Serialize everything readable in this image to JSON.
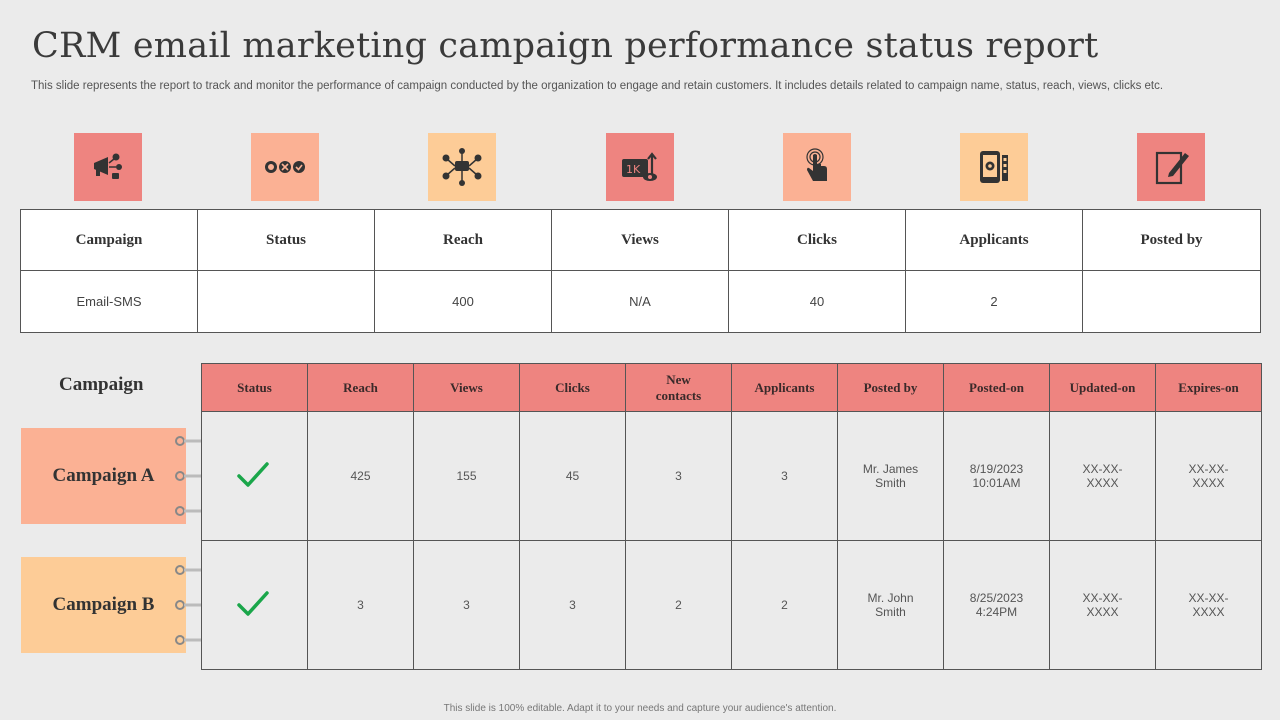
{
  "title": "CRM email marketing campaign performance status report",
  "subtitle": "This slide represents the report to track and monitor the performance of campaign conducted by the organization to engage and retain customers. It includes details related to campaign name, status, reach, views, clicks etc.",
  "icons": [
    {
      "name": "megaphone-icon",
      "color": "#ee8480"
    },
    {
      "name": "status-circles-icon",
      "color": "#fbb194"
    },
    {
      "name": "network-reach-icon",
      "color": "#fdcc97"
    },
    {
      "name": "views-1k-icon",
      "color": "#ee8480"
    },
    {
      "name": "click-hand-icon",
      "color": "#fbb194"
    },
    {
      "name": "mobile-applicants-icon",
      "color": "#fdcc97"
    },
    {
      "name": "edit-post-icon",
      "color": "#ee8480"
    }
  ],
  "top_table": {
    "headers": [
      "Campaign",
      "Status",
      "Reach",
      "Views",
      "Clicks",
      "Applicants",
      "Posted by"
    ],
    "row": [
      "Email-SMS",
      "",
      "400",
      "N/A",
      "40",
      "2",
      ""
    ]
  },
  "bottom": {
    "campaign_heading": "Campaign",
    "headers": [
      "Status",
      "Reach",
      "Views",
      "Clicks",
      "New contacts",
      "Applicants",
      "Posted by",
      "Posted-on",
      "Updated-on",
      "Expires-on"
    ],
    "rows": [
      {
        "campaign": "Campaign A",
        "status": "check",
        "reach": "425",
        "views": "155",
        "clicks": "45",
        "new_contacts": "3",
        "applicants": "3",
        "posted_by": "Mr. James Smith",
        "posted_on": "8/19/2023 10:01AM",
        "updated_on": "XX-XX-XXXX",
        "expires_on": "XX-XX-XXXX"
      },
      {
        "campaign": "Campaign B",
        "status": "check",
        "reach": "3",
        "views": "3",
        "clicks": "3",
        "new_contacts": "2",
        "applicants": "2",
        "posted_by": "Mr. John Smith",
        "posted_on": "8/25/2023 4:24PM",
        "updated_on": "XX-XX-XXXX",
        "expires_on": "XX-XX-XXXX"
      }
    ]
  },
  "colors": {
    "coral": "#ee8480",
    "peach": "#fbb194",
    "light_orange": "#fdcc97",
    "check_green": "#1aa64a"
  },
  "footer": "This slide is 100% editable. Adapt it to your needs and capture your audience's attention."
}
